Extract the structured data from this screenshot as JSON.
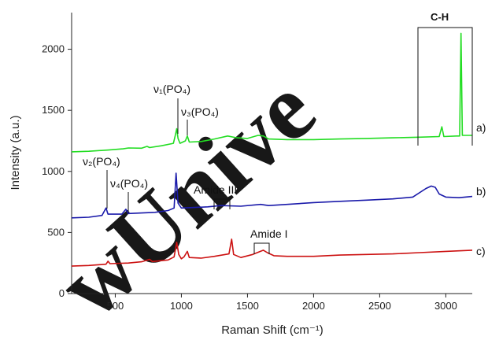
{
  "chart_data": {
    "type": "line",
    "xlabel": "Raman Shift (cm⁻¹)",
    "ylabel": "Intensity (a.u.)",
    "xlim": [
      170,
      3200
    ],
    "ylim": [
      0,
      2300
    ],
    "x_ticks": [
      500,
      1000,
      1500,
      2000,
      2500,
      3000
    ],
    "y_ticks": [
      0,
      500,
      1000,
      1500,
      2000
    ],
    "grid": false,
    "series": [
      {
        "name": "a)",
        "color": "#22dd22",
        "points": [
          [
            170,
            1160
          ],
          [
            300,
            1165
          ],
          [
            450,
            1175
          ],
          [
            560,
            1185
          ],
          [
            600,
            1192
          ],
          [
            700,
            1190
          ],
          [
            740,
            1205
          ],
          [
            760,
            1195
          ],
          [
            850,
            1210
          ],
          [
            940,
            1230
          ],
          [
            955,
            1300
          ],
          [
            965,
            1350
          ],
          [
            975,
            1270
          ],
          [
            990,
            1230
          ],
          [
            1030,
            1250
          ],
          [
            1045,
            1290
          ],
          [
            1060,
            1240
          ],
          [
            1150,
            1245
          ],
          [
            1250,
            1265
          ],
          [
            1350,
            1290
          ],
          [
            1420,
            1275
          ],
          [
            1500,
            1270
          ],
          [
            1580,
            1295
          ],
          [
            1620,
            1290
          ],
          [
            1660,
            1265
          ],
          [
            1800,
            1260
          ],
          [
            2000,
            1260
          ],
          [
            2200,
            1265
          ],
          [
            2400,
            1270
          ],
          [
            2600,
            1275
          ],
          [
            2800,
            1280
          ],
          [
            2950,
            1285
          ],
          [
            2970,
            1365
          ],
          [
            2985,
            1285
          ],
          [
            3080,
            1290
          ],
          [
            3105,
            1290
          ],
          [
            3115,
            2130
          ],
          [
            3125,
            1295
          ],
          [
            3200,
            1295
          ]
        ]
      },
      {
        "name": "b)",
        "color": "#1a1aaa",
        "points": [
          [
            170,
            620
          ],
          [
            300,
            625
          ],
          [
            400,
            640
          ],
          [
            430,
            700
          ],
          [
            445,
            650
          ],
          [
            550,
            650
          ],
          [
            580,
            690
          ],
          [
            600,
            655
          ],
          [
            700,
            660
          ],
          [
            800,
            665
          ],
          [
            900,
            680
          ],
          [
            945,
            700
          ],
          [
            960,
            985
          ],
          [
            975,
            740
          ],
          [
            1000,
            700
          ],
          [
            1100,
            705
          ],
          [
            1200,
            710
          ],
          [
            1300,
            720
          ],
          [
            1450,
            715
          ],
          [
            1600,
            730
          ],
          [
            1660,
            720
          ],
          [
            1800,
            730
          ],
          [
            2000,
            745
          ],
          [
            2200,
            755
          ],
          [
            2400,
            765
          ],
          [
            2600,
            775
          ],
          [
            2750,
            790
          ],
          [
            2850,
            860
          ],
          [
            2890,
            880
          ],
          [
            2920,
            870
          ],
          [
            2950,
            815
          ],
          [
            3000,
            790
          ],
          [
            3100,
            785
          ],
          [
            3200,
            795
          ]
        ]
      },
      {
        "name": "c)",
        "color": "#cc1111",
        "points": [
          [
            170,
            225
          ],
          [
            300,
            230
          ],
          [
            430,
            240
          ],
          [
            445,
            265
          ],
          [
            460,
            245
          ],
          [
            600,
            250
          ],
          [
            700,
            260
          ],
          [
            760,
            280
          ],
          [
            780,
            262
          ],
          [
            900,
            275
          ],
          [
            945,
            300
          ],
          [
            965,
            420
          ],
          [
            980,
            320
          ],
          [
            1000,
            285
          ],
          [
            1020,
            300
          ],
          [
            1045,
            345
          ],
          [
            1060,
            295
          ],
          [
            1150,
            290
          ],
          [
            1250,
            305
          ],
          [
            1360,
            325
          ],
          [
            1380,
            445
          ],
          [
            1395,
            320
          ],
          [
            1450,
            295
          ],
          [
            1540,
            320
          ],
          [
            1620,
            355
          ],
          [
            1650,
            335
          ],
          [
            1700,
            310
          ],
          [
            1800,
            305
          ],
          [
            2000,
            305
          ],
          [
            2200,
            315
          ],
          [
            2400,
            320
          ],
          [
            2600,
            325
          ],
          [
            2800,
            335
          ],
          [
            3000,
            345
          ],
          [
            3200,
            355
          ]
        ]
      }
    ],
    "annotations": [
      {
        "text": "ν₁(PO₄)",
        "x": 960
      },
      {
        "text": "ν₃(PO₄)",
        "x": 1045
      },
      {
        "text": "ν₂(PO₄)",
        "x": 430
      },
      {
        "text": "ν₄(PO₄)",
        "x": 585
      },
      {
        "text": "Amide III",
        "x": 1300
      },
      {
        "text": "Amide I",
        "x": 1610
      },
      {
        "text": "C-H",
        "x": 3000
      }
    ],
    "side_labels": [
      "a)",
      "b)",
      "c)"
    ]
  }
}
